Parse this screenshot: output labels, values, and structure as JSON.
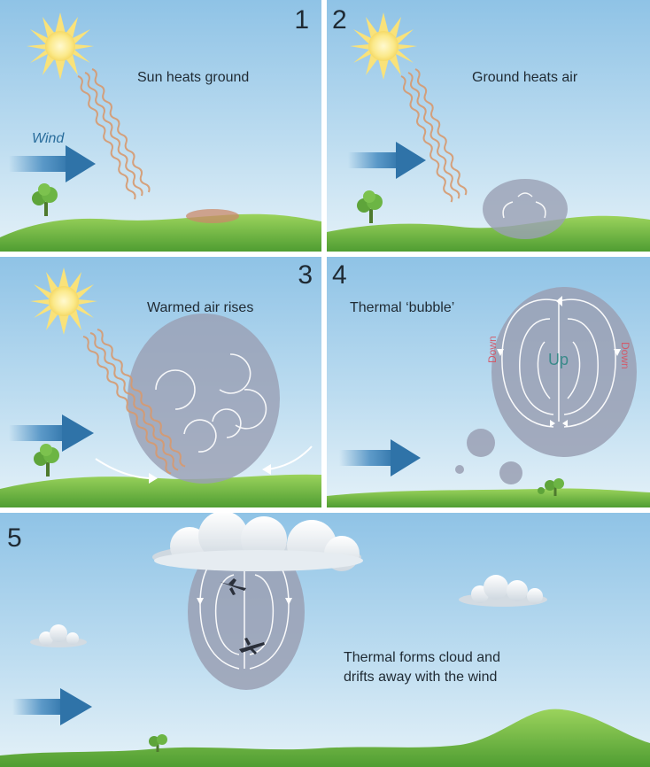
{
  "panels": {
    "p1": {
      "number": "1",
      "caption": "Sun heats ground",
      "wind_label": "Wind"
    },
    "p2": {
      "number": "2",
      "caption": "Ground heats air"
    },
    "p3": {
      "number": "3",
      "caption": "Warmed air rises"
    },
    "p4": {
      "number": "4",
      "caption": "Thermal ‘bubble’",
      "up_label": "Up",
      "down_left_label": "Down",
      "down_right_label": "Down"
    },
    "p5": {
      "number": "5",
      "caption_line1": "Thermal forms cloud and",
      "caption_line2": "drifts away with the wind"
    }
  },
  "colors": {
    "sky_top": "#8fc3e6",
    "ground": "#7fc64a",
    "wind_arrow": "#3f86bd",
    "thermal": "#9aa0b4",
    "sun": "#fbe98a",
    "ray": "#d79a70",
    "up_text": "#3a8a8a",
    "down_text": "#d25b6b"
  }
}
